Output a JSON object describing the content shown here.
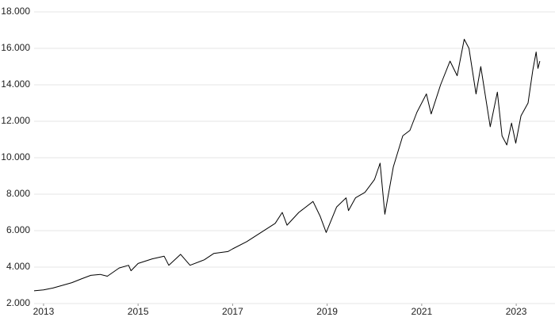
{
  "chart_data": {
    "type": "line",
    "x": [
      2012.8,
      2013.0,
      2013.2,
      2013.4,
      2013.6,
      2013.8,
      2014.0,
      2014.2,
      2014.35,
      2014.6,
      2014.8,
      2014.85,
      2015.0,
      2015.3,
      2015.55,
      2015.65,
      2015.9,
      2016.1,
      2016.4,
      2016.6,
      2016.9,
      2017.0,
      2017.3,
      2017.6,
      2017.9,
      2018.05,
      2018.15,
      2018.4,
      2018.7,
      2018.85,
      2018.98,
      2019.2,
      2019.4,
      2019.45,
      2019.6,
      2019.8,
      2020.0,
      2020.12,
      2020.22,
      2020.4,
      2020.6,
      2020.75,
      2020.9,
      2021.1,
      2021.2,
      2021.4,
      2021.6,
      2021.75,
      2021.9,
      2022.0,
      2022.15,
      2022.25,
      2022.45,
      2022.6,
      2022.7,
      2022.8,
      2022.9,
      2022.99,
      2023.1,
      2023.25,
      2023.35,
      2023.42,
      2023.46,
      2023.5
    ],
    "series": [
      {
        "color": "#000000",
        "values": [
          2700,
          2750,
          2850,
          3000,
          3150,
          3350,
          3550,
          3600,
          3500,
          3950,
          4100,
          3800,
          4200,
          4450,
          4600,
          4100,
          4700,
          4100,
          4400,
          4750,
          4850,
          5000,
          5400,
          5900,
          6400,
          7000,
          6300,
          7000,
          7600,
          6800,
          5900,
          7300,
          7800,
          7100,
          7800,
          8100,
          8800,
          9700,
          6900,
          9500,
          11200,
          11500,
          12500,
          13500,
          12400,
          14000,
          15300,
          14500,
          16500,
          16000,
          13500,
          15000,
          11700,
          13600,
          11200,
          10700,
          11900,
          10800,
          12300,
          13000,
          14800,
          15800,
          14900,
          15300
        ]
      }
    ],
    "xlim": [
      2012.8,
      2023.82
    ],
    "ylim": [
      2000,
      18000
    ],
    "xticks": [
      2013,
      2015,
      2017,
      2019,
      2021,
      2023
    ],
    "yticks": [
      {
        "value": 2000,
        "label": "2.000"
      },
      {
        "value": 4000,
        "label": "4.000"
      },
      {
        "value": 6000,
        "label": "6.000"
      },
      {
        "value": 8000,
        "label": "8.000"
      },
      {
        "value": 10000,
        "label": "10.000"
      },
      {
        "value": 12000,
        "label": "12.000"
      },
      {
        "value": 14000,
        "label": "14.000"
      },
      {
        "value": 16000,
        "label": "16.000"
      },
      {
        "value": 18000,
        "label": "18.000"
      }
    ],
    "grid": true
  }
}
